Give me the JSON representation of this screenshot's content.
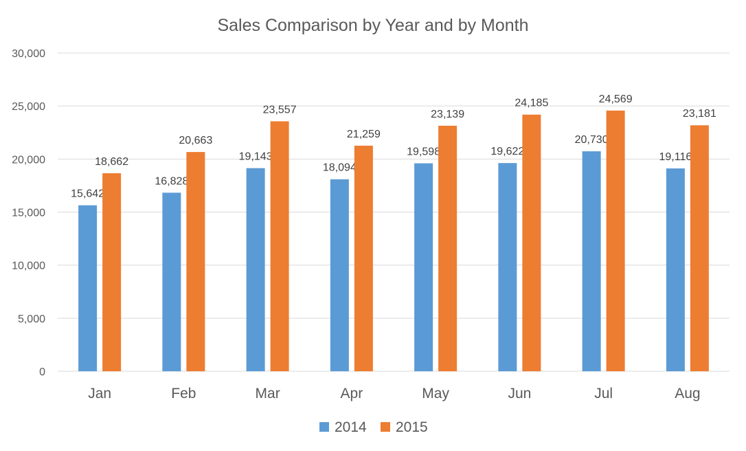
{
  "chart_data": {
    "type": "bar",
    "title": "Sales Comparison by Year and by Month",
    "xlabel": "",
    "ylabel": "",
    "categories": [
      "Jan",
      "Feb",
      "Mar",
      "Apr",
      "May",
      "Jun",
      "Jul",
      "Aug"
    ],
    "series": [
      {
        "name": "2014",
        "color": "#5b9bd5",
        "values": [
          15642,
          16828,
          19143,
          18094,
          19598,
          19622,
          20730,
          19116
        ]
      },
      {
        "name": "2015",
        "color": "#ed7d31",
        "values": [
          18662,
          20663,
          23557,
          21259,
          23139,
          24185,
          24569,
          23181
        ]
      }
    ],
    "ylim": [
      0,
      30000
    ],
    "yticks": [
      0,
      5000,
      10000,
      15000,
      20000,
      25000,
      30000
    ],
    "ytick_labels": [
      "0",
      "5,000",
      "10,000",
      "15,000",
      "20,000",
      "25,000",
      "30,000"
    ],
    "data_labels": true,
    "grid": true,
    "legend_position": "bottom"
  }
}
